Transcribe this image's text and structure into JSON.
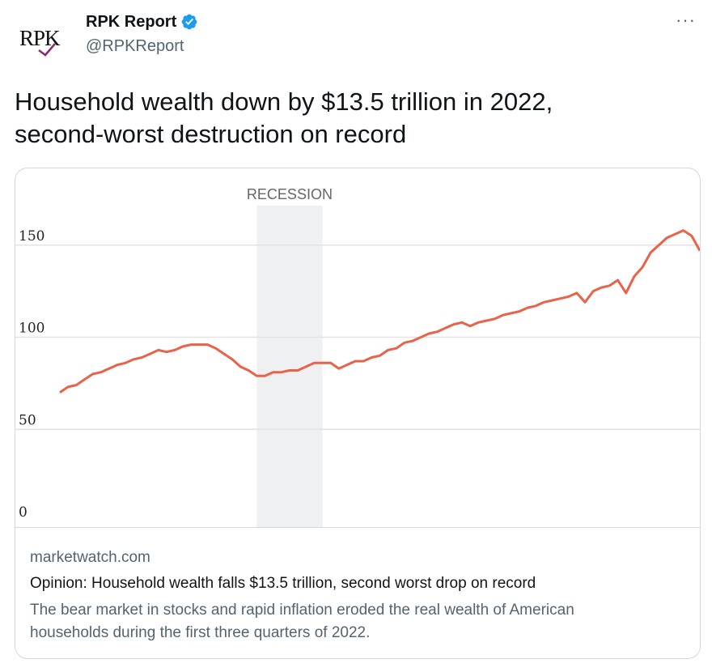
{
  "tweet": {
    "display_name": "RPK Report",
    "handle": "@RPKReport",
    "avatar_text": "RPK",
    "more_label": "···",
    "text_lines": [
      "Household wealth down by $13.5 trillion in 2022,",
      "second-worst destruction on record"
    ]
  },
  "card": {
    "domain": "marketwatch.com",
    "title": "Opinion: Household wealth falls $13.5 trillion, second worst drop on record",
    "description_lines": [
      "The bear market in stocks and rapid inflation eroded the real wealth of American",
      "households during the first three quarters of 2022."
    ]
  },
  "colors": {
    "line": "#e8634a",
    "recession_band": "#eef0f2",
    "verified": "#1d9bf0"
  },
  "chart_data": {
    "type": "line",
    "annotations": [
      "RECESSION"
    ],
    "y_ticks": [
      0,
      50,
      100,
      150
    ],
    "ylim": [
      0,
      160
    ],
    "grid": true,
    "shaded_regions": [
      {
        "label": "RECESSION",
        "start_index": 24,
        "end_index": 32
      },
      {
        "label": "",
        "start_index": 87,
        "end_index": 88
      }
    ],
    "series": [
      {
        "values": [
          70,
          73,
          74,
          77,
          80,
          81,
          83,
          85,
          86,
          88,
          89,
          91,
          93,
          92,
          93,
          95,
          96,
          96,
          96,
          94,
          91,
          88,
          84,
          82,
          79,
          79,
          81,
          81,
          82,
          82,
          84,
          86,
          86,
          86,
          83,
          85,
          87,
          87,
          89,
          90,
          93,
          94,
          97,
          98,
          100,
          102,
          103,
          105,
          107,
          108,
          106,
          108,
          109,
          110,
          112,
          113,
          114,
          116,
          117,
          119,
          120,
          121,
          122,
          124,
          119,
          125,
          127,
          128,
          131,
          124,
          133,
          138,
          146,
          150,
          154,
          156,
          158,
          155,
          147
        ]
      }
    ]
  }
}
